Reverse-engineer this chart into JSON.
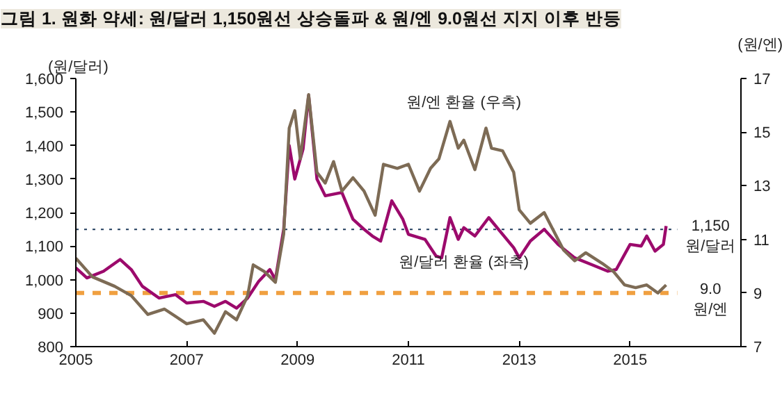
{
  "chart_data": {
    "type": "line",
    "title": "그림 1. 원화 약세: 원/달러 1,150원선 상승돌파 & 원/엔 9.0원선 지지 이후 반등",
    "ylabel": "(원/달러)",
    "y2label": "(원/엔)",
    "xlim": [
      2005,
      2017
    ],
    "xticks": [
      2005,
      2007,
      2009,
      2011,
      2013,
      2015
    ],
    "ylim": [
      800,
      1600
    ],
    "yticks": [
      {
        "value": 800,
        "label": "800"
      },
      {
        "value": 900,
        "label": "900"
      },
      {
        "value": 1000,
        "label": "1,000"
      },
      {
        "value": 1100,
        "label": "1,100"
      },
      {
        "value": 1200,
        "label": "1,200"
      },
      {
        "value": 1300,
        "label": "1,300"
      },
      {
        "value": 1400,
        "label": "1,400"
      },
      {
        "value": 1500,
        "label": "1,500"
      },
      {
        "value": 1600,
        "label": "1,600"
      }
    ],
    "y2lim": [
      7,
      17
    ],
    "y2ticks": [
      7,
      9,
      11,
      13,
      15,
      17
    ],
    "grid": false,
    "line_style": "solid",
    "marker": "none",
    "series": [
      {
        "name": "원/달러 환율 (좌측)",
        "color": "#9c0a6c",
        "x": [
          2005.0,
          2005.2,
          2005.5,
          2005.8,
          2006.0,
          2006.2,
          2006.5,
          2006.8,
          2007.0,
          2007.3,
          2007.5,
          2007.7,
          2007.9,
          2008.1,
          2008.3,
          2008.5,
          2008.6,
          2008.75,
          2008.85,
          2008.95,
          2009.1,
          2009.2,
          2009.35,
          2009.5,
          2009.8,
          2010.0,
          2010.2,
          2010.35,
          2010.5,
          2010.7,
          2010.9,
          2011.0,
          2011.3,
          2011.5,
          2011.6,
          2011.75,
          2011.9,
          2012.0,
          2012.2,
          2012.45,
          2012.7,
          2012.9,
          2013.0,
          2013.2,
          2013.45,
          2013.7,
          2014.0,
          2014.3,
          2014.6,
          2014.75,
          2015.0,
          2015.2,
          2015.3,
          2015.45,
          2015.6,
          2015.65
        ],
        "values": [
          1035,
          1005,
          1025,
          1060,
          1030,
          980,
          945,
          955,
          930,
          935,
          920,
          935,
          915,
          945,
          995,
          1030,
          1000,
          1150,
          1400,
          1300,
          1390,
          1550,
          1300,
          1250,
          1260,
          1180,
          1150,
          1130,
          1115,
          1235,
          1180,
          1135,
          1120,
          1070,
          1065,
          1185,
          1120,
          1155,
          1130,
          1185,
          1135,
          1095,
          1065,
          1115,
          1150,
          1105,
          1065,
          1045,
          1025,
          1030,
          1105,
          1100,
          1130,
          1085,
          1105,
          1160
        ]
      },
      {
        "name": "원/엔 환율 (우측)",
        "color": "#7d6b55",
        "axis": "y2",
        "x": [
          2005.0,
          2005.3,
          2005.7,
          2006.0,
          2006.3,
          2006.6,
          2007.0,
          2007.3,
          2007.5,
          2007.7,
          2007.9,
          2008.1,
          2008.2,
          2008.4,
          2008.6,
          2008.75,
          2008.85,
          2008.95,
          2009.05,
          2009.2,
          2009.35,
          2009.5,
          2009.65,
          2009.8,
          2010.0,
          2010.2,
          2010.4,
          2010.55,
          2010.8,
          2011.0,
          2011.2,
          2011.4,
          2011.55,
          2011.75,
          2011.9,
          2012.0,
          2012.2,
          2012.4,
          2012.5,
          2012.7,
          2012.9,
          2013.0,
          2013.2,
          2013.45,
          2013.6,
          2013.8,
          2014.0,
          2014.2,
          2014.5,
          2014.7,
          2014.9,
          2015.1,
          2015.3,
          2015.5,
          2015.65
        ],
        "values": [
          10.3,
          9.6,
          9.25,
          8.9,
          8.2,
          8.4,
          7.85,
          8.0,
          7.5,
          8.3,
          8.0,
          8.9,
          10.05,
          9.8,
          9.4,
          11.2,
          15.15,
          15.8,
          14.0,
          16.4,
          13.5,
          13.1,
          13.9,
          12.8,
          13.3,
          12.8,
          11.9,
          13.8,
          13.65,
          13.8,
          12.8,
          13.65,
          14.0,
          15.4,
          14.4,
          14.7,
          13.6,
          15.15,
          14.4,
          14.3,
          13.5,
          12.1,
          11.6,
          12.0,
          11.4,
          10.6,
          10.2,
          10.5,
          10.1,
          9.8,
          9.3,
          9.2,
          9.3,
          9.0,
          9.3
        ]
      }
    ],
    "ref_lines": [
      {
        "axis": "y",
        "value": 1150,
        "label": "1,150\n원/달러",
        "color": "#1f3b5c",
        "line_style": "dotted"
      },
      {
        "axis": "y2",
        "value": 9.0,
        "label": "9.0\n원/엔",
        "color": "#f0a040",
        "line_style": "dashed"
      }
    ]
  }
}
